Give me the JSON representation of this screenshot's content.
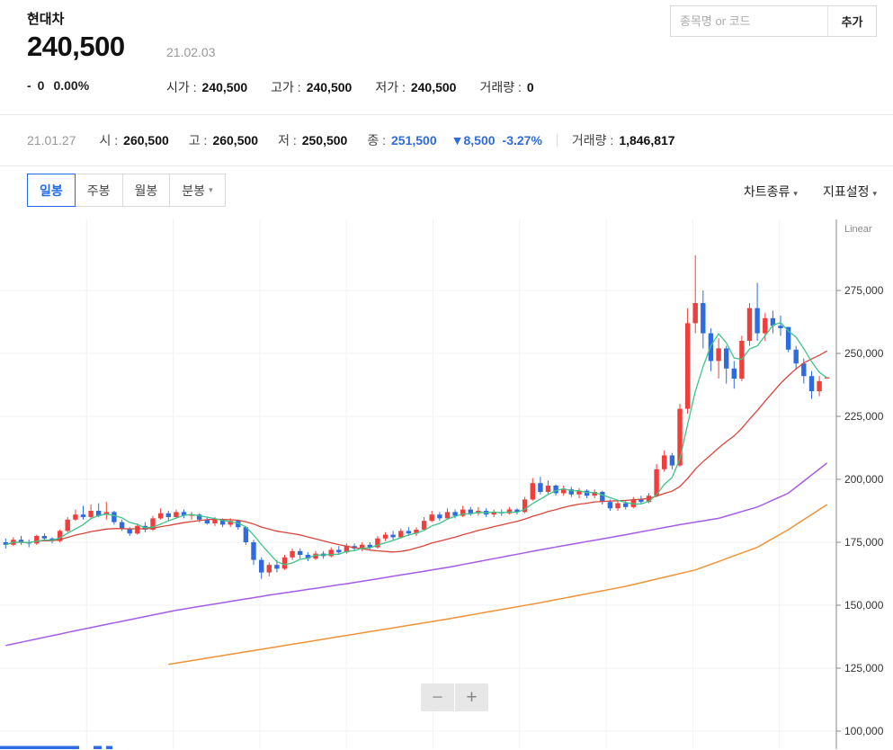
{
  "icons": {
    "chevron_down": "▾",
    "down_triangle": "▼"
  },
  "header": {
    "stock_name": "현대차",
    "price": "240,500",
    "date": "21.02.03",
    "change_sign": "-",
    "change_value": "0",
    "change_pct": "0.00%",
    "stats": [
      {
        "label": "시가 :",
        "value": "240,500"
      },
      {
        "label": "고가 :",
        "value": "240,500"
      },
      {
        "label": "저가 :",
        "value": "240,500"
      },
      {
        "label": "거래량 :",
        "value": "0"
      }
    ],
    "search_placeholder": "종목명 or 코드",
    "add_button_label": "추가"
  },
  "info_bar": {
    "date": "21.01.27",
    "items": [
      {
        "label": "시 :",
        "value": "260,500"
      },
      {
        "label": "고 :",
        "value": "260,500"
      },
      {
        "label": "저 :",
        "value": "250,500"
      },
      {
        "label": "종 :",
        "value": "251,500"
      }
    ],
    "change_value": "8,500",
    "change_pct": "-3.27%",
    "volume_label": "거래량 :",
    "volume_value": "1,846,817"
  },
  "toolbar": {
    "tabs": [
      {
        "label": "일봉",
        "active": true
      },
      {
        "label": "주봉",
        "active": false
      },
      {
        "label": "월봉",
        "active": false
      },
      {
        "label": "분봉",
        "active": false
      }
    ],
    "menus": [
      "차트종류",
      "지표설정"
    ]
  },
  "chart": {
    "zoom_out_label": "−",
    "zoom_in_label": "+"
  },
  "chart_data": {
    "type": "candlestick",
    "scale_label": "Linear",
    "y_ticks": [
      {
        "label": "275,000",
        "value": 275
      },
      {
        "label": "250,000",
        "value": 250
      },
      {
        "label": "225,000",
        "value": 225
      },
      {
        "label": "200,000",
        "value": 200
      },
      {
        "label": "175,000",
        "value": 175
      },
      {
        "label": "150,000",
        "value": 150
      },
      {
        "label": "125,000",
        "value": 125
      },
      {
        "label": "100,000",
        "value": 100
      }
    ],
    "up_color": "#ef3e3b",
    "down_color": "#2f6be0",
    "ma_colors": {
      "ma5": "#3fc487",
      "ma20": "#d8453c",
      "ma60": "#a45ce8",
      "ma120": "#ef9337"
    },
    "last_candle": {
      "date": "21.02.03",
      "open": 240.5,
      "high": 240.5,
      "low": 240.5,
      "close": 240.5
    },
    "prev_marked_candle": {
      "date": "21.01.27",
      "open": 260.5,
      "high": 260.5,
      "low": 250.5,
      "close": 251.5
    },
    "candles_ohlc": [
      [
        175,
        176.5,
        172.5,
        174
      ],
      [
        174,
        177,
        173.5,
        176
      ],
      [
        176,
        177.5,
        174,
        175
      ],
      [
        175,
        176,
        173,
        174.5
      ],
      [
        174.5,
        178,
        174,
        177.5
      ],
      [
        177.5,
        178.5,
        175.5,
        176.5
      ],
      [
        176.5,
        177,
        174.5,
        175.5
      ],
      [
        175.5,
        180,
        175,
        179.5
      ],
      [
        179.5,
        185,
        179,
        184
      ],
      [
        184,
        188,
        183.5,
        186
      ],
      [
        186,
        189.5,
        184,
        185
      ],
      [
        185,
        190,
        184.5,
        187.5
      ],
      [
        187.5,
        190.5,
        185,
        185.5
      ],
      [
        186,
        191,
        184,
        187
      ],
      [
        187,
        187.5,
        182,
        183
      ],
      [
        183,
        184,
        179.5,
        180.5
      ],
      [
        180.5,
        181,
        177.5,
        178.5
      ],
      [
        178.5,
        182.5,
        178,
        181.5
      ],
      [
        181.5,
        183,
        179,
        180
      ],
      [
        180,
        185.5,
        179.5,
        184.5
      ],
      [
        184.5,
        188.5,
        184,
        186.5
      ],
      [
        186.5,
        187.5,
        183.5,
        185
      ],
      [
        185,
        188,
        184.5,
        187
      ],
      [
        187,
        188,
        184.5,
        185.5
      ],
      [
        185.5,
        187,
        184,
        186
      ],
      [
        186,
        186.5,
        183,
        184
      ],
      [
        184,
        185,
        182,
        182.5
      ],
      [
        182.5,
        185,
        181.5,
        184
      ],
      [
        184,
        184.5,
        181,
        182
      ],
      [
        182,
        184.5,
        181,
        183.5
      ],
      [
        183.5,
        184,
        180,
        181
      ],
      [
        181,
        181.5,
        174,
        175
      ],
      [
        175,
        176,
        166,
        168
      ],
      [
        168,
        169,
        160.5,
        163
      ],
      [
        163,
        167,
        161.5,
        166
      ],
      [
        166,
        168,
        163,
        164.5
      ],
      [
        164.5,
        170,
        164,
        169
      ],
      [
        169,
        172.5,
        168,
        171.5
      ],
      [
        171.5,
        172.5,
        168.5,
        170
      ],
      [
        170,
        171,
        167.5,
        168.5
      ],
      [
        168.5,
        171.5,
        168,
        170.5
      ],
      [
        170.5,
        171.5,
        168.5,
        169.5
      ],
      [
        169.5,
        173,
        169,
        172
      ],
      [
        172,
        173.5,
        170,
        171
      ],
      [
        171,
        174.5,
        170.5,
        173.5
      ],
      [
        173.5,
        174.5,
        171.5,
        172.5
      ],
      [
        172.5,
        175,
        171.5,
        174
      ],
      [
        174,
        175,
        172,
        173
      ],
      [
        173,
        177.5,
        172.5,
        176.5
      ],
      [
        176.5,
        179,
        175.5,
        178
      ],
      [
        178,
        179.5,
        176,
        177
      ],
      [
        177,
        180.5,
        176.5,
        179.5
      ],
      [
        179.5,
        181,
        177.5,
        178.5
      ],
      [
        178.5,
        181,
        177.5,
        180
      ],
      [
        180,
        185,
        179.5,
        183.5
      ],
      [
        183.5,
        187.5,
        183,
        186
      ],
      [
        186,
        187,
        183.5,
        184.5
      ],
      [
        184.5,
        188.5,
        184,
        187
      ],
      [
        187,
        188,
        184.5,
        185.5
      ],
      [
        185.5,
        189.5,
        185,
        188
      ],
      [
        188,
        189,
        185.5,
        186.5
      ],
      [
        186.5,
        189,
        185.5,
        187.5
      ],
      [
        187.5,
        188.5,
        185,
        186
      ],
      [
        186,
        188,
        185,
        187
      ],
      [
        187,
        188,
        185.5,
        186.5
      ],
      [
        186.5,
        189,
        186,
        188
      ],
      [
        188,
        188.5,
        186,
        187
      ],
      [
        187,
        193,
        186.5,
        192
      ],
      [
        192,
        200.5,
        191.5,
        198.5
      ],
      [
        198.5,
        201,
        194,
        195
      ],
      [
        195,
        199.5,
        194,
        197.5
      ],
      [
        197.5,
        198,
        193.5,
        194.5
      ],
      [
        194.5,
        197.5,
        193.5,
        196
      ],
      [
        196,
        197,
        193,
        194
      ],
      [
        194,
        196.5,
        192.5,
        195.5
      ],
      [
        195.5,
        196,
        192.5,
        193.5
      ],
      [
        193.5,
        196,
        192.5,
        195
      ],
      [
        195,
        195.5,
        190,
        191
      ],
      [
        191,
        192,
        187.5,
        188.5
      ],
      [
        188.5,
        191.5,
        187.5,
        190.5
      ],
      [
        190.5,
        191.5,
        188,
        189
      ],
      [
        189,
        193,
        188.5,
        192
      ],
      [
        192,
        193.5,
        190,
        191
      ],
      [
        191,
        194.5,
        190.5,
        193.5
      ],
      [
        193.5,
        206,
        193,
        204
      ],
      [
        204,
        211.5,
        203,
        209.5
      ],
      [
        209.5,
        210.5,
        204,
        205.5
      ],
      [
        205.5,
        230,
        205,
        228
      ],
      [
        228,
        268,
        226,
        262
      ],
      [
        262,
        289,
        258,
        270
      ],
      [
        270,
        275,
        252,
        258
      ],
      [
        258,
        260,
        243,
        247
      ],
      [
        247,
        256,
        240,
        252
      ],
      [
        252,
        253,
        238,
        244
      ],
      [
        244,
        247,
        236,
        240
      ],
      [
        240,
        257,
        239,
        255
      ],
      [
        255,
        270,
        253,
        268
      ],
      [
        268,
        278,
        255,
        258
      ],
      [
        258,
        266,
        255,
        264
      ],
      [
        264,
        267,
        258,
        261
      ],
      [
        261,
        265,
        257,
        260
      ],
      [
        260.5,
        260.5,
        250.5,
        251.5
      ],
      [
        251.5,
        253,
        244,
        246
      ],
      [
        246,
        248,
        238,
        241
      ],
      [
        241,
        243,
        232,
        235
      ],
      [
        235,
        241,
        233,
        239
      ],
      [
        240.5,
        240.5,
        240.5,
        240.5
      ]
    ],
    "ma60_anchors": [
      [
        0,
        134
      ],
      [
        10,
        140.5
      ],
      [
        22,
        148
      ],
      [
        34,
        154
      ],
      [
        45,
        159
      ],
      [
        57,
        165
      ],
      [
        69,
        172
      ],
      [
        80,
        178
      ],
      [
        87,
        182
      ],
      [
        92,
        184.5
      ],
      [
        97,
        189
      ],
      [
        101,
        194.5
      ],
      [
        106,
        206.5
      ]
    ],
    "ma120_anchors": [
      [
        21,
        126.5
      ],
      [
        34,
        133
      ],
      [
        45,
        138.5
      ],
      [
        57,
        144.5
      ],
      [
        69,
        151
      ],
      [
        80,
        157.5
      ],
      [
        89,
        164
      ],
      [
        97,
        173
      ],
      [
        101,
        180
      ],
      [
        106,
        190
      ]
    ],
    "volume_edge_segments": [
      [
        0,
        88
      ],
      [
        104,
        9
      ],
      [
        118,
        7
      ]
    ]
  }
}
